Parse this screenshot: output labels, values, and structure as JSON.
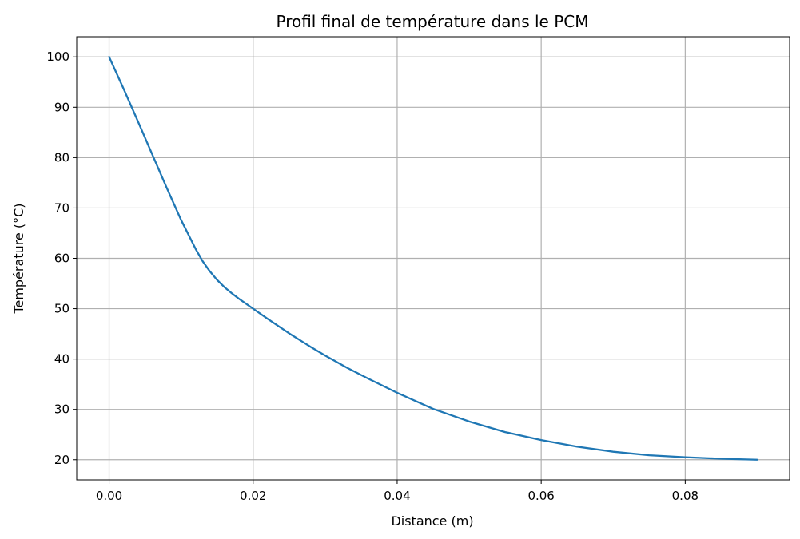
{
  "chart_data": {
    "type": "line",
    "title": "Profil final de température dans le PCM",
    "xlabel": "Distance (m)",
    "ylabel": "Température (°C)",
    "xlim": [
      -0.0045,
      0.0945
    ],
    "ylim": [
      16,
      104
    ],
    "xticks": [
      0.0,
      0.02,
      0.04,
      0.06,
      0.08
    ],
    "xtick_labels": [
      "0.00",
      "0.02",
      "0.04",
      "0.06",
      "0.08"
    ],
    "yticks": [
      20,
      30,
      40,
      50,
      60,
      70,
      80,
      90,
      100
    ],
    "ytick_labels": [
      "20",
      "30",
      "40",
      "50",
      "60",
      "70",
      "80",
      "90",
      "100"
    ],
    "grid": true,
    "series": [
      {
        "color": "#1f77b4",
        "x": [
          0.0,
          0.002,
          0.004,
          0.006,
          0.008,
          0.01,
          0.012,
          0.013,
          0.014,
          0.015,
          0.016,
          0.017,
          0.018,
          0.02,
          0.022,
          0.025,
          0.028,
          0.03,
          0.033,
          0.036,
          0.04,
          0.045,
          0.05,
          0.055,
          0.06,
          0.065,
          0.07,
          0.075,
          0.08,
          0.085,
          0.09
        ],
        "y": [
          100.0,
          93.7,
          87.2,
          80.6,
          74.0,
          67.6,
          61.9,
          59.4,
          57.4,
          55.7,
          54.3,
          53.1,
          52.0,
          50.0,
          48.0,
          45.1,
          42.4,
          40.7,
          38.3,
          36.1,
          33.3,
          30.1,
          27.6,
          25.5,
          23.9,
          22.6,
          21.6,
          20.9,
          20.5,
          20.2,
          20.0
        ]
      }
    ]
  }
}
